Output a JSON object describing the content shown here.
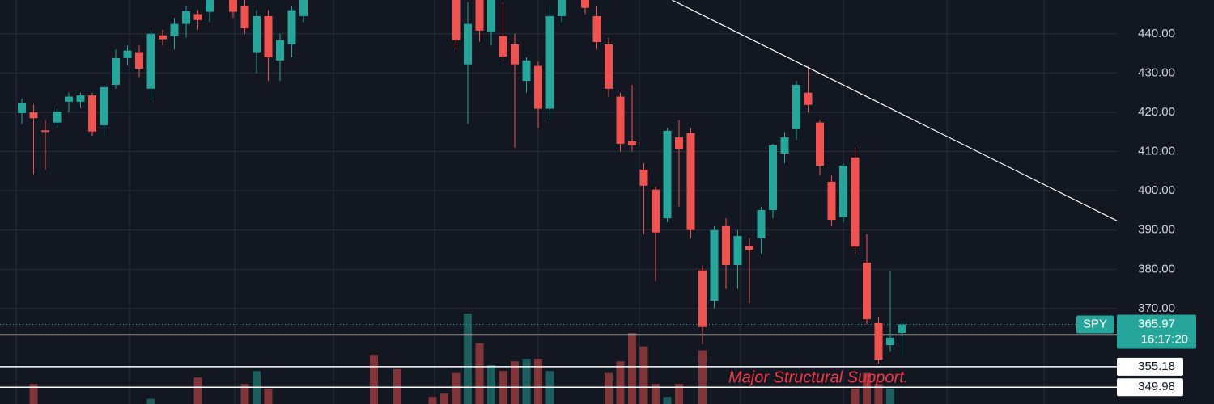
{
  "chart_data": {
    "type": "candlestick",
    "symbol": "SPY",
    "last_price": 365.97,
    "countdown": "16:17:20",
    "annotation": "Major Structural Support.",
    "up_color": "#26a69a",
    "down_color": "#ef5350",
    "open": [
      419.8,
      420,
      415.4,
      417.4,
      422.7,
      422.7,
      424.3,
      416.7,
      427,
      433.8,
      435.3,
      426,
      439.6,
      439.4,
      442.5,
      445,
      445.6,
      null,
      448.6,
      447,
      435.3,
      444.5,
      433.2,
      437.3,
      444.5,
      null,
      null,
      null,
      null,
      null,
      null,
      null,
      null,
      null,
      null,
      null,
      null,
      448.6,
      432.2,
      448.6,
      440.4,
      439.4,
      437.3,
      428,
      431.8,
      420.9,
      444.5,
      null,
      448.6,
      444.5,
      437.3,
      424,
      412.6,
      405.4,
      400.3,
      393,
      413.6,
      414.7,
      379.7,
      372,
      391,
      381.1,
      386,
      387.9,
      395.1,
      409.5,
      415.7,
      425,
      417.4,
      402.3,
      393.3,
      408.5,
      381.7,
      366.3,
      360.7,
      363.8
    ],
    "high": [
      423.5,
      422,
      418,
      421,
      425,
      425,
      425,
      427,
      436,
      437,
      437,
      441,
      441,
      444,
      447,
      446,
      450,
      null,
      450,
      449,
      446,
      446,
      440,
      447,
      450,
      null,
      null,
      null,
      null,
      null,
      null,
      null,
      null,
      null,
      null,
      null,
      null,
      450,
      448,
      450,
      450,
      448,
      440,
      434,
      433,
      447,
      450,
      null,
      450,
      447,
      439,
      425,
      427,
      407,
      401,
      416,
      418,
      416,
      381,
      391,
      393,
      390,
      388,
      396,
      412,
      415,
      428,
      431.8,
      418,
      404,
      407,
      411,
      389,
      368,
      379.4,
      367
    ],
    "low": [
      417,
      404.3,
      405.4,
      416,
      420,
      421,
      414,
      414,
      426,
      432,
      429,
      423,
      437,
      436,
      439,
      441,
      443,
      null,
      444,
      440,
      430,
      428,
      428,
      434,
      443,
      null,
      null,
      null,
      null,
      null,
      null,
      null,
      null,
      null,
      null,
      null,
      null,
      436,
      417,
      438,
      437,
      433,
      411,
      425,
      416,
      418,
      443,
      null,
      445,
      436,
      424,
      410,
      410,
      389,
      377,
      392,
      396,
      388,
      361,
      370,
      375,
      375,
      371.4,
      384,
      393,
      407,
      413,
      420,
      404,
      391,
      392,
      384,
      366,
      356,
      359,
      358
    ],
    "close": [
      422.3,
      418.5,
      415,
      420.2,
      424,
      424.3,
      415.1,
      426.4,
      433.8,
      435.7,
      431.1,
      440,
      438.6,
      442.5,
      445.8,
      443.5,
      448.6,
      null,
      445.6,
      441.4,
      444.5,
      434,
      438.4,
      446,
      448.6,
      null,
      null,
      null,
      null,
      null,
      null,
      null,
      null,
      null,
      null,
      null,
      null,
      438.4,
      442.5,
      440.8,
      448.6,
      434.2,
      432.2,
      433.2,
      420.9,
      444.5,
      448.6,
      null,
      446.6,
      437.9,
      426,
      412,
      411.6,
      401.3,
      389.4,
      415.3,
      410.6,
      390,
      365.3,
      390,
      381.1,
      388.5,
      385,
      395.1,
      411.6,
      413.6,
      427,
      421.9,
      406.4,
      392.6,
      406.4,
      385.8,
      367.3,
      357,
      362.6,
      365.97
    ],
    "volume": [
      null,
      31,
      null,
      null,
      null,
      null,
      null,
      null,
      null,
      null,
      null,
      8,
      null,
      null,
      null,
      41,
      null,
      null,
      null,
      31,
      51,
      24,
      null,
      null,
      null,
      null,
      null,
      null,
      null,
      null,
      76,
      null,
      54,
      null,
      null,
      11,
      16,
      48,
      140,
      94,
      60,
      51,
      66,
      70,
      70,
      51,
      null,
      null,
      null,
      null,
      48,
      66,
      110,
      89,
      31,
      11,
      31,
      null,
      83,
      null,
      null,
      null,
      null,
      null,
      null,
      null,
      null,
      null,
      null,
      null,
      null,
      24,
      48,
      31,
      24,
      null
    ],
    "vlim": [
      0,
      250
    ],
    "trendline": {
      "x": [
        55.4,
        93.3
      ],
      "y": [
        448.6,
        392.4
      ]
    },
    "levels": [
      363.32,
      355.18,
      349.98
    ],
    "ylim": [
      345.7,
      448.6
    ],
    "yticks": [
      {
        "value": 370,
        "label": "370.00"
      },
      {
        "value": 380,
        "label": "380.00"
      },
      {
        "value": 390,
        "label": "390.00"
      },
      {
        "value": 400,
        "label": "400.00"
      },
      {
        "value": 410,
        "label": "410.00"
      },
      {
        "value": 420,
        "label": "420.00"
      },
      {
        "value": 430,
        "label": "430.00"
      },
      {
        "value": 440,
        "label": "440.00"
      }
    ],
    "grid": true
  }
}
